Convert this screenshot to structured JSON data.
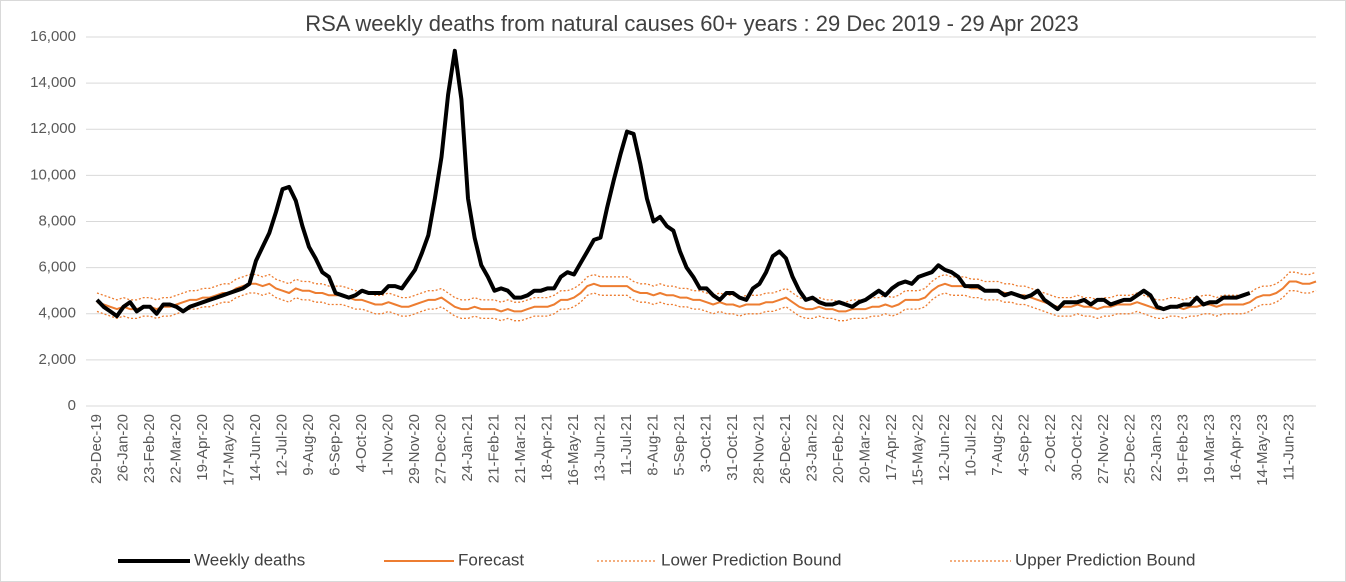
{
  "chart_data": {
    "type": "line",
    "title": "RSA weekly deaths from natural causes 60+ years : 29 Dec 2019 - 29 Apr 2023",
    "categories": [
      "29-Dec-19",
      null,
      null,
      null,
      "26-Jan-20",
      null,
      null,
      null,
      "23-Feb-20",
      null,
      null,
      null,
      "22-Mar-20",
      null,
      null,
      null,
      "19-Apr-20",
      null,
      null,
      null,
      "17-May-20",
      null,
      null,
      null,
      "14-Jun-20",
      null,
      null,
      null,
      "12-Jul-20",
      null,
      null,
      null,
      "9-Aug-20",
      null,
      null,
      null,
      "6-Sep-20",
      null,
      null,
      null,
      "4-Oct-20",
      null,
      null,
      null,
      "1-Nov-20",
      null,
      null,
      null,
      "29-Nov-20",
      null,
      null,
      null,
      "27-Dec-20",
      null,
      null,
      null,
      "24-Jan-21",
      null,
      null,
      null,
      "21-Feb-21",
      null,
      null,
      null,
      "21-Mar-21",
      null,
      null,
      null,
      "18-Apr-21",
      null,
      null,
      null,
      "16-May-21",
      null,
      null,
      null,
      "13-Jun-21",
      null,
      null,
      null,
      "11-Jul-21",
      null,
      null,
      null,
      "8-Aug-21",
      null,
      null,
      null,
      "5-Sep-21",
      null,
      null,
      null,
      "3-Oct-21",
      null,
      null,
      null,
      "31-Oct-21",
      null,
      null,
      null,
      "28-Nov-21",
      null,
      null,
      null,
      "26-Dec-21",
      null,
      null,
      null,
      "23-Jan-22",
      null,
      null,
      null,
      "20-Feb-22",
      null,
      null,
      null,
      "20-Mar-22",
      null,
      null,
      null,
      "17-Apr-22",
      null,
      null,
      null,
      "15-May-22",
      null,
      null,
      null,
      "12-Jun-22",
      null,
      null,
      null,
      "10-Jul-22",
      null,
      null,
      null,
      "7-Aug-22",
      null,
      null,
      null,
      "4-Sep-22",
      null,
      null,
      null,
      "2-Oct-22",
      null,
      null,
      null,
      "30-Oct-22",
      null,
      null,
      null,
      "27-Nov-22",
      null,
      null,
      null,
      "25-Dec-22",
      null,
      null,
      null,
      "22-Jan-23",
      null,
      null,
      null,
      "19-Feb-23",
      null,
      null,
      null,
      "19-Mar-23",
      null,
      null,
      null,
      "16-Apr-23",
      null,
      null,
      null,
      "14-May-23",
      null,
      null,
      null,
      "11-Jun-23",
      null,
      null,
      null,
      null
    ],
    "series": [
      {
        "name": "Weekly deaths",
        "color": "#000000",
        "line_style": "solid",
        "line_width": 4,
        "values": [
          4600,
          4300,
          4100,
          3900,
          4300,
          4500,
          4100,
          4300,
          4300,
          4000,
          4400,
          4400,
          4300,
          4100,
          4300,
          4400,
          4500,
          4600,
          4700,
          4800,
          4900,
          5000,
          5100,
          5300,
          6300,
          6900,
          7500,
          8400,
          9400,
          9500,
          8900,
          7800,
          6900,
          6400,
          5800,
          5600,
          4900,
          4800,
          4700,
          4800,
          5000,
          4900,
          4900,
          4900,
          5200,
          5200,
          5100,
          5500,
          5900,
          6600,
          7400,
          9000,
          10800,
          13500,
          15400,
          13300,
          9000,
          7300,
          6100,
          5600,
          5000,
          5100,
          5000,
          4700,
          4700,
          4800,
          5000,
          5000,
          5100,
          5100,
          5600,
          5800,
          5700,
          6200,
          6700,
          7200,
          7300,
          8600,
          9800,
          10900,
          11900,
          11800,
          10500,
          9000,
          8000,
          8200,
          7800,
          7600,
          6700,
          6000,
          5600,
          5100,
          5100,
          4800,
          4600,
          4900,
          4900,
          4700,
          4600,
          5100,
          5300,
          5800,
          6500,
          6700,
          6400,
          5600,
          5000,
          4600,
          4700,
          4500,
          4400,
          4400,
          4500,
          4400,
          4300,
          4500,
          4600,
          4800,
          5000,
          4800,
          5100,
          5300,
          5400,
          5300,
          5600,
          5700,
          5800,
          6100,
          5900,
          5800,
          5600,
          5200,
          5200,
          5200,
          5000,
          5000,
          5000,
          4800,
          4900,
          4800,
          4700,
          4800,
          5000,
          4600,
          4400,
          4200,
          4500,
          4500,
          4500,
          4600,
          4400,
          4600,
          4600,
          4400,
          4500,
          4600,
          4600,
          4800,
          5000,
          4800,
          4300,
          4200,
          4300,
          4300,
          4400,
          4400,
          4700,
          4400,
          4500,
          4500,
          4700,
          4700,
          4700,
          4800,
          4900,
          null,
          null,
          null,
          null,
          null,
          null,
          null,
          null,
          null,
          null
        ]
      },
      {
        "name": "Forecast",
        "color": "#ed7d31",
        "line_style": "solid",
        "line_width": 2,
        "values": [
          4500,
          4400,
          4300,
          4200,
          4300,
          4200,
          4200,
          4300,
          4300,
          4200,
          4300,
          4300,
          4400,
          4500,
          4600,
          4600,
          4700,
          4700,
          4800,
          4900,
          4900,
          5100,
          5200,
          5300,
          5300,
          5200,
          5300,
          5100,
          5000,
          4900,
          5100,
          5000,
          5000,
          4900,
          4900,
          4800,
          4800,
          4800,
          4700,
          4600,
          4600,
          4500,
          4400,
          4400,
          4500,
          4400,
          4300,
          4300,
          4400,
          4500,
          4600,
          4600,
          4700,
          4500,
          4300,
          4200,
          4200,
          4300,
          4200,
          4200,
          4200,
          4100,
          4200,
          4100,
          4100,
          4200,
          4300,
          4300,
          4300,
          4400,
          4600,
          4600,
          4700,
          4900,
          5200,
          5300,
          5200,
          5200,
          5200,
          5200,
          5200,
          5000,
          4900,
          4900,
          4800,
          4900,
          4800,
          4800,
          4700,
          4700,
          4600,
          4600,
          4500,
          4400,
          4500,
          4400,
          4400,
          4300,
          4400,
          4400,
          4400,
          4500,
          4500,
          4600,
          4700,
          4500,
          4300,
          4200,
          4200,
          4300,
          4200,
          4200,
          4100,
          4100,
          4200,
          4200,
          4200,
          4300,
          4300,
          4400,
          4300,
          4400,
          4600,
          4600,
          4600,
          4700,
          5000,
          5200,
          5300,
          5200,
          5200,
          5200,
          5100,
          5100,
          5000,
          5000,
          5000,
          4900,
          4900,
          4800,
          4800,
          4700,
          4600,
          4500,
          4400,
          4300,
          4300,
          4300,
          4400,
          4300,
          4300,
          4200,
          4300,
          4300,
          4400,
          4400,
          4400,
          4500,
          4400,
          4300,
          4200,
          4200,
          4300,
          4300,
          4200,
          4300,
          4300,
          4400,
          4400,
          4300,
          4400,
          4400,
          4400,
          4400,
          4500,
          4700,
          4800,
          4800,
          4900,
          5100,
          5400,
          5400,
          5300,
          5300,
          5400
        ]
      },
      {
        "name": "Lower Prediction Bound",
        "color": "#ed7d31",
        "line_style": "dotted",
        "line_width": 1.3,
        "values": [
          4100,
          4000,
          3900,
          3800,
          3900,
          3800,
          3800,
          3900,
          3900,
          3800,
          3900,
          3900,
          4000,
          4100,
          4200,
          4200,
          4300,
          4300,
          4400,
          4500,
          4500,
          4700,
          4800,
          4900,
          4900,
          4800,
          4900,
          4700,
          4600,
          4500,
          4700,
          4600,
          4600,
          4500,
          4500,
          4400,
          4400,
          4400,
          4300,
          4200,
          4200,
          4100,
          4000,
          4000,
          4100,
          4000,
          3900,
          3900,
          4000,
          4100,
          4200,
          4200,
          4300,
          4100,
          3900,
          3800,
          3800,
          3900,
          3800,
          3800,
          3800,
          3700,
          3800,
          3700,
          3700,
          3800,
          3900,
          3900,
          3900,
          4000,
          4200,
          4200,
          4300,
          4500,
          4800,
          4900,
          4800,
          4800,
          4800,
          4800,
          4800,
          4600,
          4500,
          4500,
          4400,
          4500,
          4400,
          4400,
          4300,
          4300,
          4200,
          4200,
          4100,
          4000,
          4100,
          4000,
          4000,
          3900,
          4000,
          4000,
          4000,
          4100,
          4100,
          4200,
          4300,
          4100,
          3900,
          3800,
          3800,
          3900,
          3800,
          3800,
          3700,
          3700,
          3800,
          3800,
          3800,
          3900,
          3900,
          4000,
          3900,
          4000,
          4200,
          4200,
          4200,
          4300,
          4600,
          4800,
          4900,
          4800,
          4800,
          4800,
          4700,
          4700,
          4600,
          4600,
          4600,
          4500,
          4500,
          4400,
          4400,
          4300,
          4200,
          4100,
          4000,
          3900,
          3900,
          3900,
          4000,
          3900,
          3900,
          3800,
          3900,
          3900,
          4000,
          4000,
          4000,
          4100,
          4000,
          3900,
          3800,
          3800,
          3900,
          3900,
          3800,
          3900,
          3900,
          4000,
          4000,
          3900,
          4000,
          4000,
          4000,
          4000,
          4100,
          4300,
          4400,
          4400,
          4500,
          4700,
          5000,
          5000,
          4900,
          4900,
          5000
        ]
      },
      {
        "name": "Upper Prediction Bound",
        "color": "#ed7d31",
        "line_style": "dotted",
        "line_width": 1.3,
        "values": [
          4900,
          4800,
          4700,
          4600,
          4700,
          4600,
          4600,
          4700,
          4700,
          4600,
          4700,
          4700,
          4800,
          4900,
          5000,
          5000,
          5100,
          5100,
          5200,
          5300,
          5300,
          5500,
          5600,
          5700,
          5700,
          5600,
          5700,
          5500,
          5400,
          5300,
          5500,
          5400,
          5400,
          5300,
          5300,
          5200,
          5200,
          5200,
          5100,
          5000,
          5000,
          4900,
          4800,
          4800,
          4900,
          4800,
          4700,
          4700,
          4800,
          4900,
          5000,
          5000,
          5100,
          4900,
          4700,
          4600,
          4600,
          4700,
          4600,
          4600,
          4600,
          4500,
          4600,
          4500,
          4500,
          4600,
          4700,
          4700,
          4700,
          4800,
          5000,
          5000,
          5100,
          5300,
          5600,
          5700,
          5600,
          5600,
          5600,
          5600,
          5600,
          5400,
          5300,
          5300,
          5200,
          5300,
          5200,
          5200,
          5100,
          5100,
          5000,
          5000,
          4900,
          4800,
          4900,
          4800,
          4800,
          4700,
          4800,
          4800,
          4800,
          4900,
          4900,
          5000,
          5100,
          4900,
          4700,
          4600,
          4600,
          4700,
          4600,
          4600,
          4500,
          4500,
          4600,
          4600,
          4600,
          4700,
          4700,
          4800,
          4700,
          4800,
          5000,
          5000,
          5000,
          5100,
          5400,
          5600,
          5700,
          5600,
          5600,
          5600,
          5500,
          5500,
          5400,
          5400,
          5400,
          5300,
          5300,
          5200,
          5200,
          5100,
          5000,
          4900,
          4800,
          4700,
          4700,
          4700,
          4800,
          4700,
          4700,
          4600,
          4700,
          4700,
          4800,
          4800,
          4800,
          4900,
          4800,
          4700,
          4600,
          4600,
          4700,
          4700,
          4600,
          4700,
          4700,
          4800,
          4800,
          4700,
          4800,
          4800,
          4800,
          4800,
          4900,
          5100,
          5200,
          5200,
          5300,
          5500,
          5800,
          5800,
          5700,
          5700,
          5800
        ]
      }
    ],
    "ylim": [
      0,
      16000
    ],
    "yticks": [
      0,
      {
        "value": 2000,
        "label": "2,000"
      },
      {
        "value": 4000,
        "label": "4,000"
      },
      {
        "value": 6000,
        "label": "6,000"
      },
      {
        "value": 8000,
        "label": "8,000"
      },
      {
        "value": 10000,
        "label": "10,000"
      },
      {
        "value": 12000,
        "label": "12,000"
      },
      {
        "value": 14000,
        "label": "14,000"
      },
      {
        "value": 16000,
        "label": "16,000"
      }
    ],
    "grid": true,
    "legend": "bottom"
  }
}
